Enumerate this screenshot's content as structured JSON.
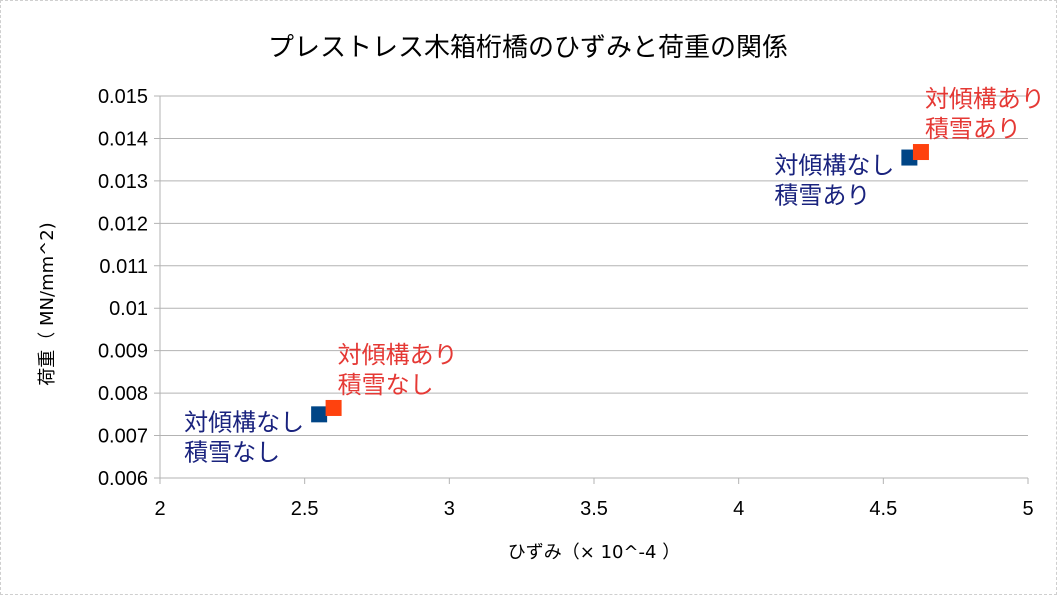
{
  "chart_data": {
    "type": "scatter",
    "title": "プレストレス木箱桁橋のひずみと荷重の関係",
    "xlabel": "ひずみ（× 10^-4 ）",
    "ylabel": "荷重（ MN/mm^2)",
    "xlim": [
      2,
      5
    ],
    "ylim": [
      0.006,
      0.015
    ],
    "x_ticks": [
      2,
      2.5,
      3,
      3.5,
      4,
      4.5,
      5
    ],
    "x_tick_labels": [
      "2",
      "2.5",
      "3",
      "3.5",
      "4",
      "4.5",
      "5"
    ],
    "y_ticks": [
      0.006,
      0.007,
      0.008,
      0.009,
      0.01,
      0.011,
      0.012,
      0.013,
      0.014,
      0.015
    ],
    "y_tick_labels": [
      "0.006",
      "0.007",
      "0.008",
      "0.009",
      "0.01",
      "0.011",
      "0.012",
      "0.013",
      "0.014",
      "0.015"
    ],
    "grid": true,
    "series": [
      {
        "color": "#004586",
        "marker": "square",
        "points": [
          {
            "x": 2.55,
            "y": 0.0075,
            "label": [
              "対傾構なし",
              "積雪なし"
            ]
          },
          {
            "x": 4.59,
            "y": 0.01355,
            "label": [
              "対傾構なし",
              "積雪あり"
            ]
          }
        ]
      },
      {
        "color": "#ff420e",
        "marker": "square",
        "points": [
          {
            "x": 2.6,
            "y": 0.00765,
            "label": [
              "対傾構あり",
              "積雪なし"
            ]
          },
          {
            "x": 4.63,
            "y": 0.01368,
            "label": [
              "対傾構あり",
              "積雪あり"
            ]
          }
        ]
      }
    ],
    "label_colors": {
      "series_1": "#1a237e",
      "series_2": "#e53935"
    }
  }
}
